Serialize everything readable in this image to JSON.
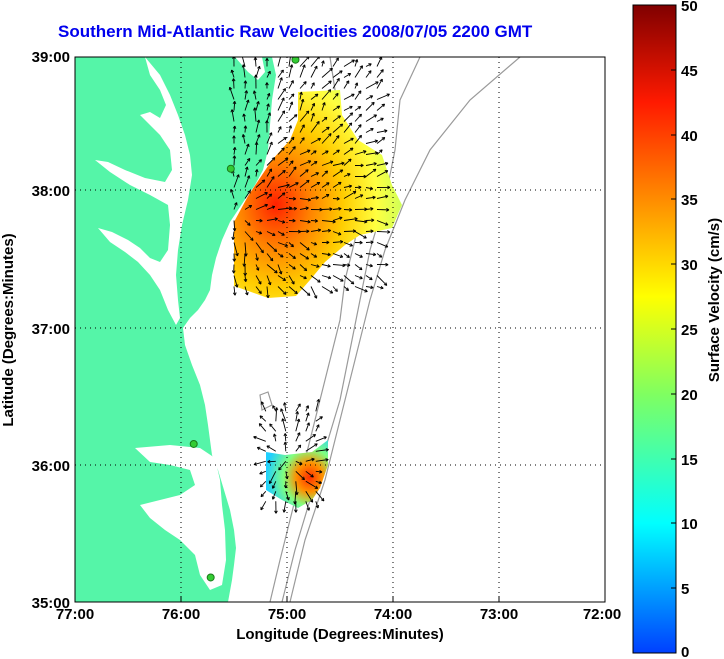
{
  "title": "Southern Mid-Atlantic Raw Velocities 2008/07/05 2200 GMT",
  "x_axis": {
    "label": "Longitude (Degrees:Minutes)",
    "ticks": [
      "77:00",
      "76:00",
      "75:00",
      "74:00",
      "73:00",
      "72:00"
    ]
  },
  "y_axis": {
    "label": "Latitude (Degrees:Minutes)",
    "ticks": [
      "39:00",
      "38:00",
      "37:00",
      "36:00",
      "35:00"
    ]
  },
  "colorbar": {
    "label": "Surface Velocity (cm/s)",
    "ticks": [
      "50",
      "45",
      "40",
      "35",
      "30",
      "25",
      "20",
      "15",
      "10",
      "5",
      "0"
    ],
    "min": 0,
    "max": 50
  },
  "colors": {
    "land": "#55f5a8",
    "bathymetry": "#9a9a9a",
    "title": "#0000ee",
    "stations": "#33cc33"
  },
  "stations": [
    {
      "lon": -74.92,
      "lat": 38.98
    },
    {
      "lon": -75.53,
      "lat": 38.18
    },
    {
      "lon": -75.88,
      "lat": 36.16
    },
    {
      "lon": -75.72,
      "lat": 35.18
    }
  ],
  "velocity_fields": [
    {
      "region": "north",
      "lon_range": [
        -75.5,
        -74.05
      ],
      "lat_range": [
        37.28,
        38.93
      ]
    },
    {
      "region": "south",
      "lon_range": [
        -75.2,
        -74.65
      ],
      "lat_range": [
        35.7,
        36.4
      ]
    }
  ]
}
